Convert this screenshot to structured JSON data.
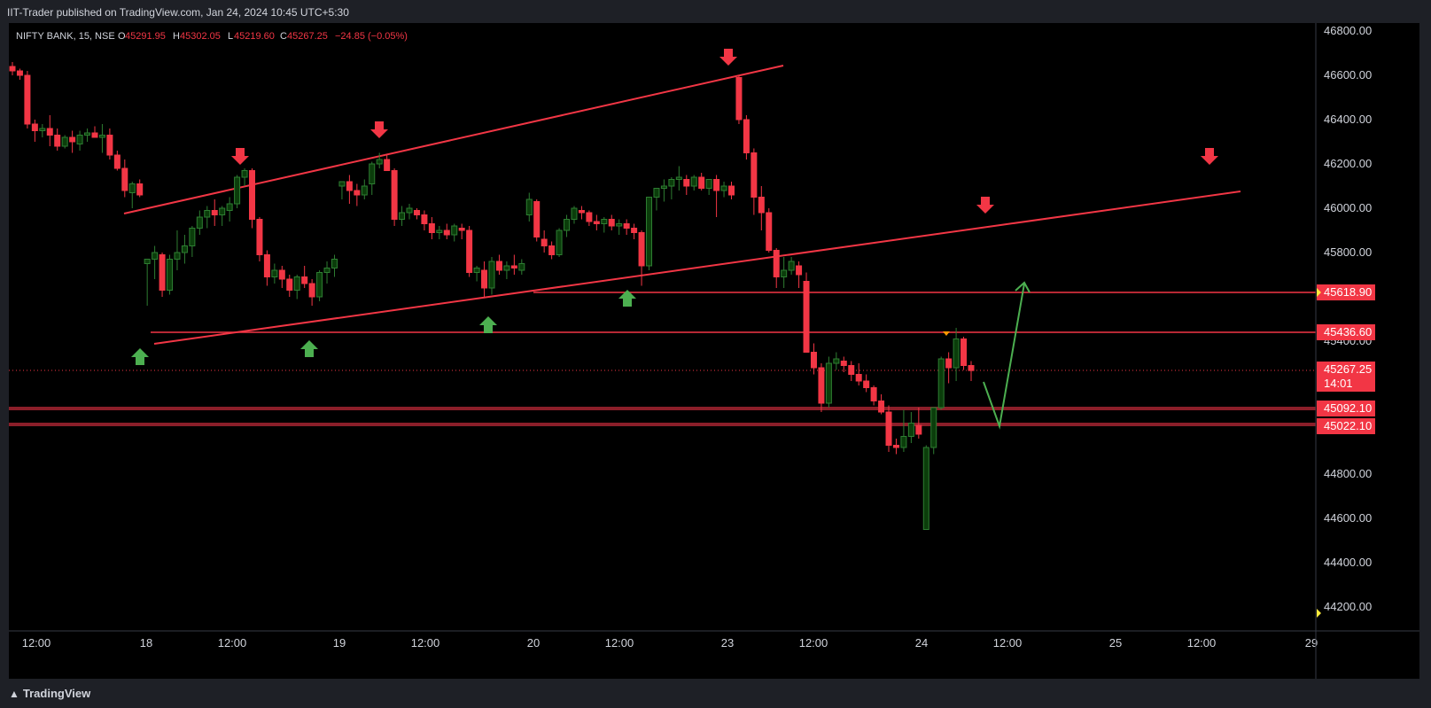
{
  "header": {
    "publisher": "IIT-Trader published on TradingView.com, Jan 24, 2024 10:45 UTC+5:30"
  },
  "legend": {
    "symbol": "NIFTY BANK, 15, NSE",
    "o_label": "O",
    "o": "45291.95",
    "h_label": "H",
    "h": "45302.05",
    "l_label": "L",
    "l": "45219.60",
    "c_label": "C",
    "c": "45267.25",
    "change": "−24.85 (−0.05%)"
  },
  "footer": {
    "brand": "TradingView"
  },
  "colors": {
    "up": "#26a69a",
    "up_body": "#0b3d0b",
    "down": "#f23645",
    "trend": "#f23645",
    "arrow_up": "#4caf50",
    "arrow_down": "#f23645",
    "background": "#000000"
  },
  "chart_data": {
    "type": "candlestick",
    "title": "NIFTY BANK, 15, NSE",
    "ylim": [
      44100,
      46800
    ],
    "y_ticks": [
      "46800.00",
      "46600.00",
      "46400.00",
      "46200.00",
      "46000.00",
      "45800.00",
      "45600.00",
      "45400.00",
      "45200.00",
      "45000.00",
      "44800.00",
      "44600.00",
      "44400.00",
      "44200.00"
    ],
    "x_ticks": [
      "12:00",
      "18",
      "12:00",
      "19",
      "12:00",
      "20",
      "12:00",
      "23",
      "12:00",
      "24",
      "12:00",
      "25",
      "12:00",
      "29"
    ],
    "price_labels": [
      {
        "value": "45618.90",
        "color": "#f23645"
      },
      {
        "value": "45436.60",
        "color": "#f23645"
      },
      {
        "value": "45267.25",
        "sub": "14:01",
        "color": "#f23645"
      },
      {
        "value": "45092.10",
        "color": "#f23645"
      },
      {
        "value": "45022.10",
        "color": "#f23645"
      }
    ],
    "candles": [
      [
        46640,
        46660,
        46600,
        46620
      ],
      [
        46620,
        46630,
        46580,
        46600
      ],
      [
        46600,
        46620,
        46360,
        46380
      ],
      [
        46380,
        46400,
        46300,
        46350
      ],
      [
        46350,
        46380,
        46320,
        46360
      ],
      [
        46360,
        46420,
        46280,
        46330
      ],
      [
        46330,
        46360,
        46260,
        46280
      ],
      [
        46280,
        46330,
        46270,
        46320
      ],
      [
        46320,
        46350,
        46250,
        46300
      ],
      [
        46290,
        46350,
        46260,
        46330
      ],
      [
        46330,
        46360,
        46300,
        46340
      ],
      [
        46340,
        46370,
        46320,
        46320
      ],
      [
        46320,
        46380,
        46250,
        46330
      ],
      [
        46330,
        46360,
        46220,
        46240
      ],
      [
        46240,
        46260,
        46170,
        46180
      ],
      [
        46180,
        46220,
        46050,
        46080
      ],
      [
        46070,
        46120,
        46000,
        46110
      ],
      [
        46110,
        46130,
        46050,
        46060
      ],
      [
        45750,
        45770,
        45560,
        45770
      ],
      [
        45770,
        45830,
        45680,
        45800
      ],
      [
        45790,
        45800,
        45600,
        45630
      ],
      [
        45630,
        45790,
        45610,
        45770
      ],
      [
        45770,
        45900,
        45720,
        45800
      ],
      [
        45800,
        45880,
        45750,
        45830
      ],
      [
        45830,
        45920,
        45780,
        45910
      ],
      [
        45910,
        45990,
        45880,
        45960
      ],
      [
        45960,
        46010,
        45910,
        45990
      ],
      [
        45990,
        46040,
        45920,
        45970
      ],
      [
        45970,
        46010,
        45920,
        46000
      ],
      [
        45990,
        46050,
        45940,
        46020
      ],
      [
        46020,
        46150,
        46000,
        46140
      ],
      [
        46140,
        46180,
        46100,
        46170
      ],
      [
        46170,
        46180,
        45910,
        45950
      ],
      [
        45950,
        45960,
        45760,
        45790
      ],
      [
        45790,
        45810,
        45650,
        45690
      ],
      [
        45690,
        45750,
        45660,
        45720
      ],
      [
        45720,
        45740,
        45640,
        45680
      ],
      [
        45680,
        45700,
        45600,
        45630
      ],
      [
        45630,
        45700,
        45590,
        45690
      ],
      [
        45690,
        45740,
        45640,
        45660
      ],
      [
        45660,
        45680,
        45560,
        45600
      ],
      [
        45600,
        45720,
        45580,
        45710
      ],
      [
        45710,
        45760,
        45660,
        45730
      ],
      [
        45730,
        45790,
        45690,
        45770
      ],
      [
        46100,
        46120,
        46040,
        46120
      ],
      [
        46120,
        46150,
        46020,
        46080
      ],
      [
        46080,
        46110,
        46010,
        46060
      ],
      [
        46060,
        46130,
        46040,
        46100
      ],
      [
        46110,
        46210,
        46060,
        46200
      ],
      [
        46200,
        46250,
        46180,
        46220
      ],
      [
        46220,
        46240,
        46170,
        46170
      ],
      [
        46170,
        46180,
        45920,
        45950
      ],
      [
        45950,
        46010,
        45920,
        45980
      ],
      [
        45980,
        46020,
        45950,
        46000
      ],
      [
        45990,
        46000,
        45950,
        45970
      ],
      [
        45970,
        45990,
        45900,
        45930
      ],
      [
        45930,
        45960,
        45860,
        45890
      ],
      [
        45890,
        45920,
        45860,
        45900
      ],
      [
        45900,
        45930,
        45860,
        45880
      ],
      [
        45880,
        45930,
        45850,
        45920
      ],
      [
        45910,
        45930,
        45860,
        45900
      ],
      [
        45900,
        45920,
        45690,
        45710
      ],
      [
        45710,
        45740,
        45670,
        45730
      ],
      [
        45720,
        45760,
        45600,
        45640
      ],
      [
        45640,
        45780,
        45610,
        45760
      ],
      [
        45760,
        45790,
        45700,
        45720
      ],
      [
        45720,
        45760,
        45680,
        45740
      ],
      [
        45740,
        45790,
        45700,
        45730
      ],
      [
        45720,
        45770,
        45700,
        45750
      ],
      [
        45970,
        46070,
        45940,
        46040
      ],
      [
        46030,
        46040,
        45850,
        45870
      ],
      [
        45860,
        45900,
        45800,
        45830
      ],
      [
        45830,
        45850,
        45770,
        45790
      ],
      [
        45790,
        45910,
        45780,
        45900
      ],
      [
        45900,
        45970,
        45870,
        45950
      ],
      [
        45950,
        46010,
        45930,
        46000
      ],
      [
        45990,
        46010,
        45950,
        45980
      ],
      [
        45980,
        45990,
        45920,
        45940
      ],
      [
        45940,
        45970,
        45900,
        45930
      ],
      [
        45930,
        45960,
        45890,
        45950
      ],
      [
        45950,
        45970,
        45900,
        45920
      ],
      [
        45920,
        45950,
        45880,
        45930
      ],
      [
        45930,
        45950,
        45880,
        45910
      ],
      [
        45910,
        45930,
        45860,
        45890
      ],
      [
        45890,
        45900,
        45650,
        45740
      ],
      [
        45740,
        46050,
        45720,
        46050
      ],
      [
        46050,
        46080,
        45990,
        46090
      ],
      [
        46090,
        46130,
        46030,
        46100
      ],
      [
        46100,
        46140,
        46040,
        46130
      ],
      [
        46130,
        46190,
        46080,
        46140
      ],
      [
        46130,
        46150,
        46060,
        46100
      ],
      [
        46100,
        46150,
        46080,
        46140
      ],
      [
        46140,
        46160,
        46080,
        46090
      ],
      [
        46090,
        46130,
        46060,
        46130
      ],
      [
        46130,
        46150,
        45960,
        46080
      ],
      [
        46080,
        46120,
        46050,
        46100
      ],
      [
        46100,
        46120,
        46040,
        46060
      ],
      [
        46590,
        46600,
        46380,
        46400
      ],
      [
        46400,
        46420,
        46220,
        46250
      ],
      [
        46250,
        46270,
        45970,
        46050
      ],
      [
        46050,
        46100,
        45900,
        45980
      ],
      [
        45980,
        46000,
        45800,
        45810
      ],
      [
        45810,
        45820,
        45640,
        45690
      ],
      [
        45690,
        45780,
        45640,
        45720
      ],
      [
        45720,
        45780,
        45700,
        45760
      ],
      [
        45740,
        45760,
        45640,
        45700
      ],
      [
        45670,
        45710,
        45360,
        45350
      ],
      [
        45350,
        45390,
        45250,
        45280
      ],
      [
        45280,
        45300,
        45080,
        45120
      ],
      [
        45120,
        45330,
        45100,
        45300
      ],
      [
        45300,
        45350,
        45270,
        45320
      ],
      [
        45310,
        45330,
        45260,
        45290
      ],
      [
        45290,
        45310,
        45220,
        45250
      ],
      [
        45250,
        45300,
        45200,
        45220
      ],
      [
        45220,
        45250,
        45170,
        45190
      ],
      [
        45190,
        45200,
        45110,
        45130
      ],
      [
        45130,
        45160,
        45070,
        45080
      ],
      [
        45080,
        45110,
        44900,
        44930
      ],
      [
        44930,
        44960,
        44890,
        44920
      ],
      [
        44920,
        45090,
        44900,
        44970
      ],
      [
        44970,
        45080,
        44940,
        45030
      ],
      [
        45020,
        45100,
        44960,
        44980
      ],
      [
        44550,
        44930,
        44550,
        44920
      ],
      [
        44920,
        45100,
        44890,
        45100
      ],
      [
        45100,
        45330,
        45090,
        45320
      ],
      [
        45320,
        45350,
        45210,
        45280
      ],
      [
        45280,
        45460,
        45220,
        45410
      ],
      [
        45410,
        45420,
        45270,
        45290
      ],
      [
        45290,
        45310,
        45220,
        45267.25
      ]
    ]
  }
}
